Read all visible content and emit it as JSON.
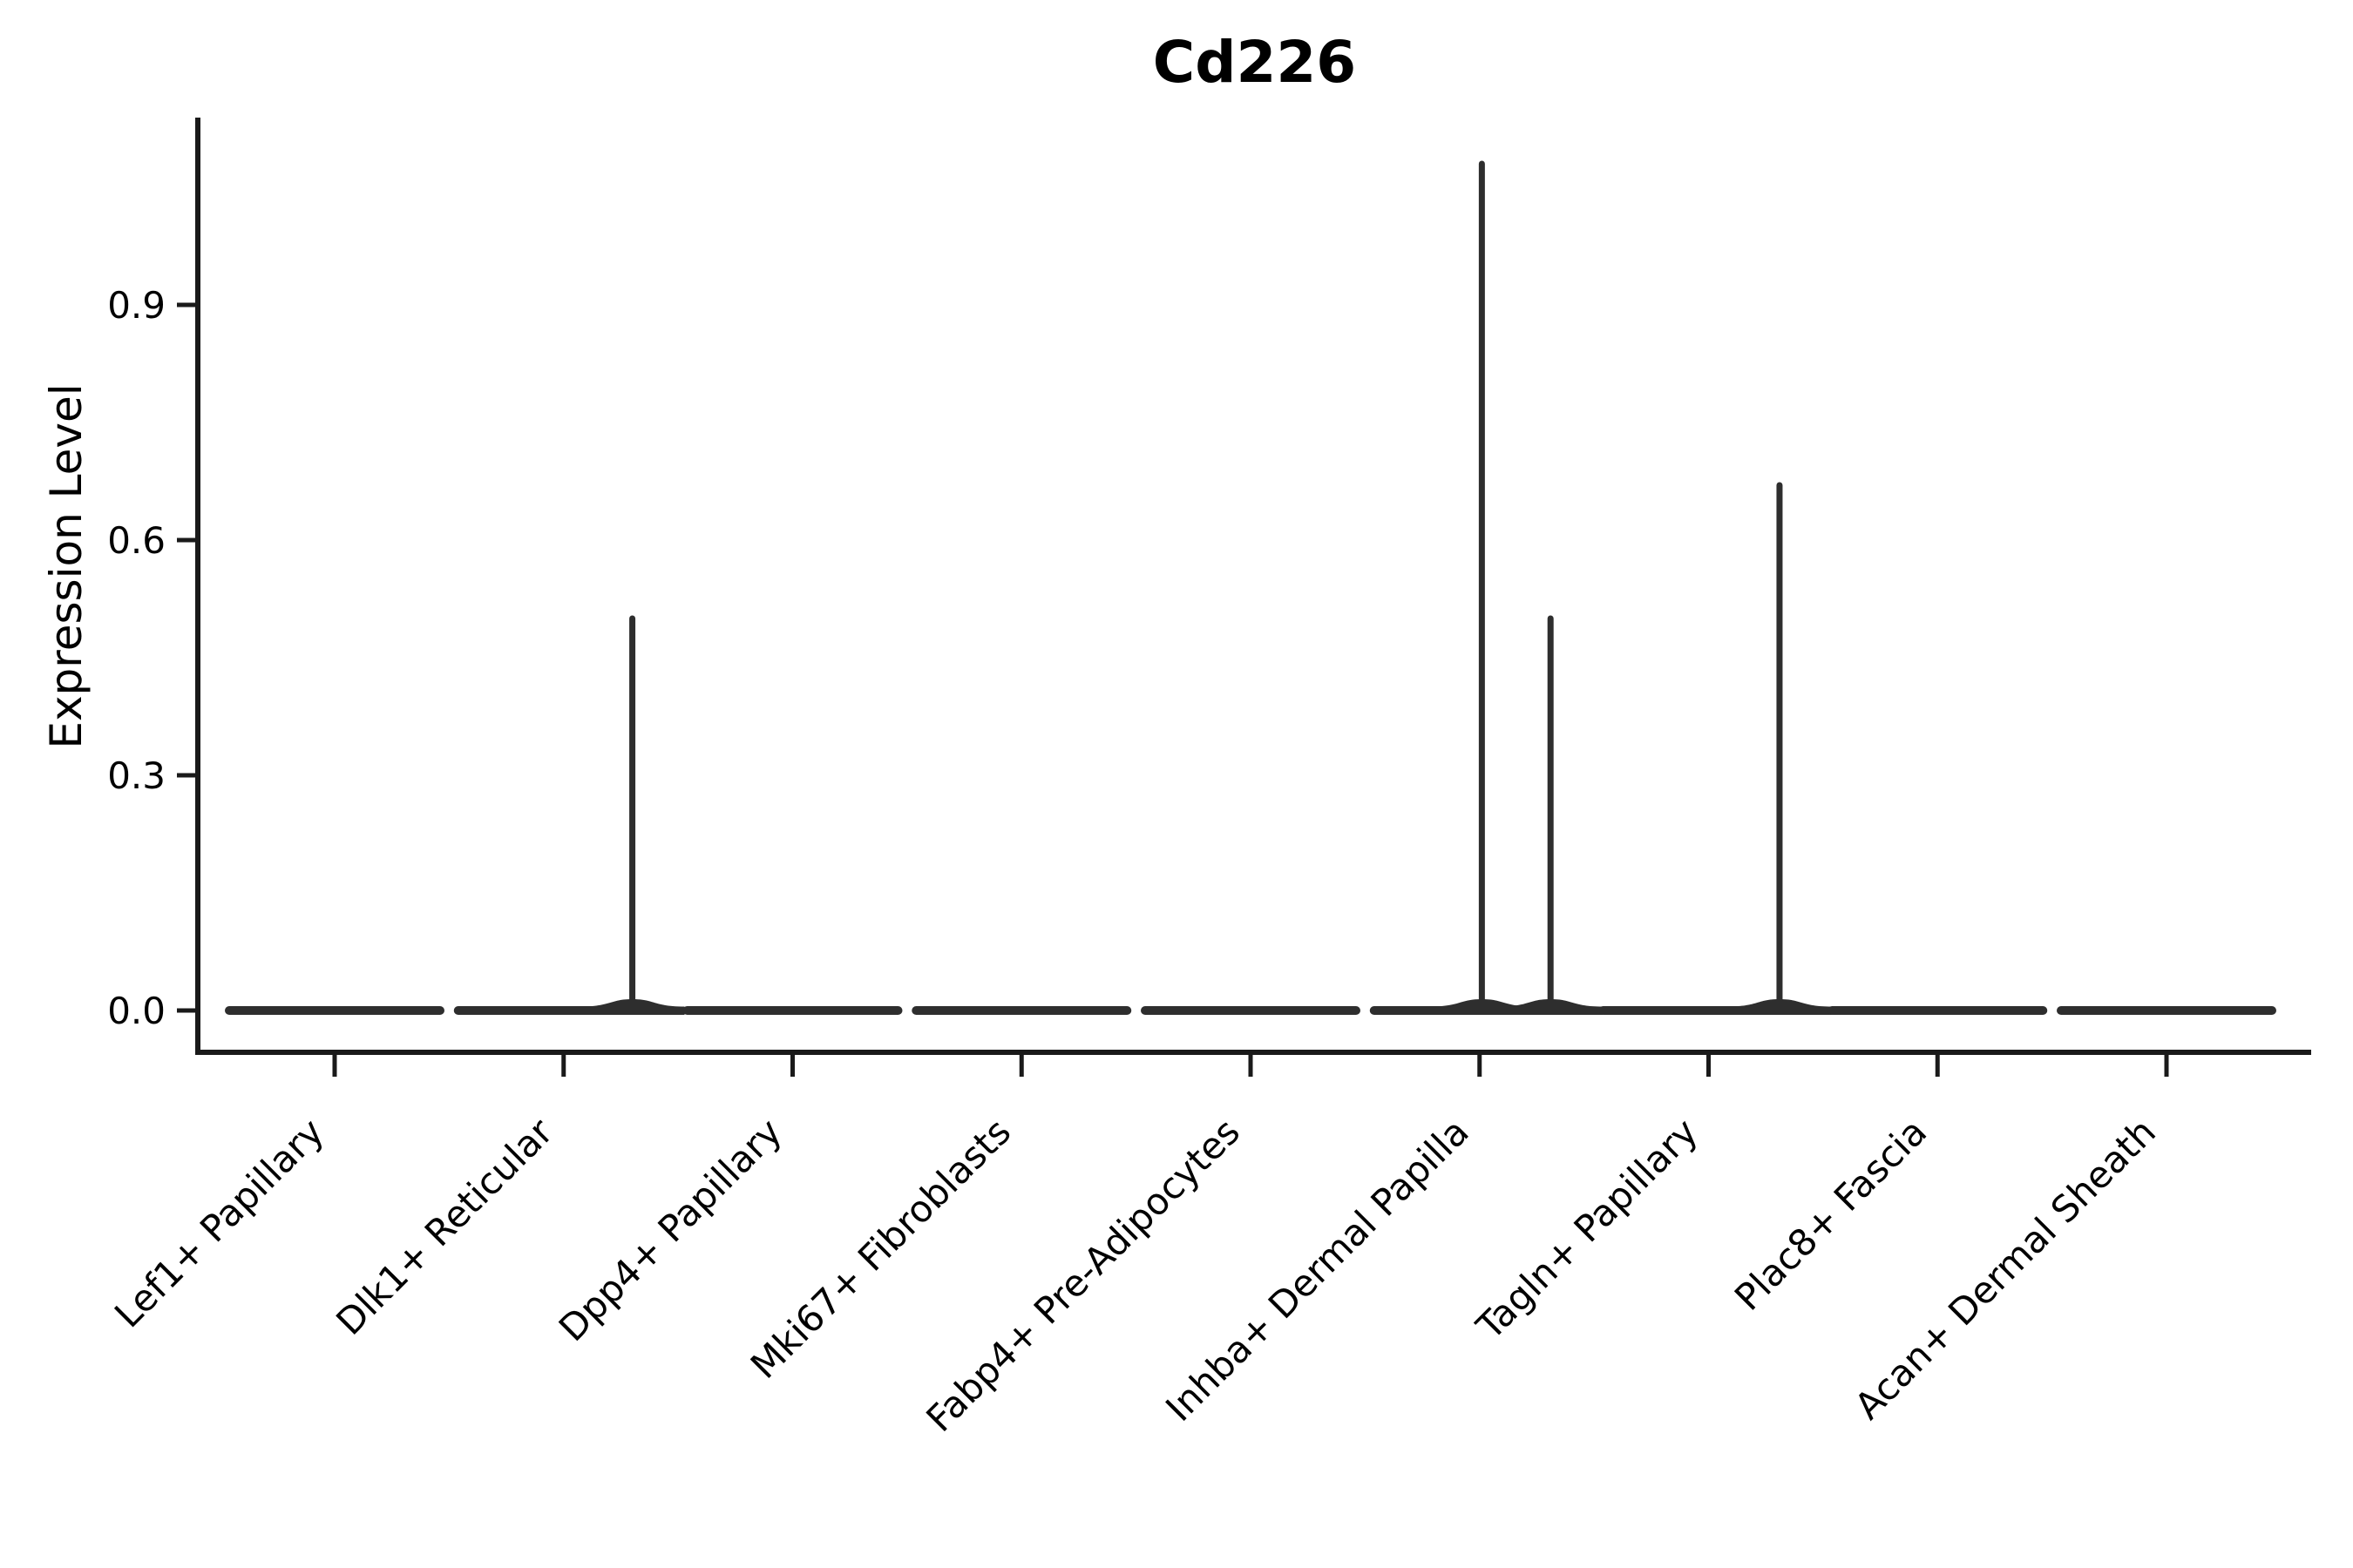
{
  "chart_data": {
    "type": "violin",
    "title": "Cd226",
    "ylabel": "Expression Level",
    "xlabel": "",
    "grid": false,
    "legend": false,
    "yticks": [
      "0.0",
      "0.3",
      "0.6",
      "0.9"
    ],
    "ytick_values": [
      0.0,
      0.3,
      0.6,
      0.9
    ],
    "ylim": [
      -0.053,
      1.139
    ],
    "categories": [
      "Lef1+ Papillary",
      "Dlk1+ Reticular",
      "Dpp4+ Papillary",
      "Mki67+ Fibroblasts",
      "Fabp4+ Pre-Adipocytes",
      "Inhba+ Dermal Papilla",
      "Tagln+ Papillary",
      "Plac8+ Fascia",
      "Acan+ Dermal Sheath"
    ],
    "violins": [
      {
        "category": "Lef1+ Papillary",
        "body": "flat-at-zero",
        "max_expression": 0,
        "spikes": []
      },
      {
        "category": "Dlk1+ Reticular",
        "body": "flat-at-zero",
        "max_expression": 0.5,
        "spikes": [
          {
            "offset_units": 0.3,
            "value": 0.5
          }
        ]
      },
      {
        "category": "Dpp4+ Papillary",
        "body": "flat-at-zero",
        "max_expression": 0,
        "spikes": []
      },
      {
        "category": "Mki67+ Fibroblasts",
        "body": "flat-at-zero",
        "max_expression": 0,
        "spikes": []
      },
      {
        "category": "Fabp4+ Pre-Adipocytes",
        "body": "flat-at-zero",
        "max_expression": 0,
        "spikes": []
      },
      {
        "category": "Inhba+ Dermal Papilla",
        "body": "flat-at-zero",
        "max_expression": 1.08,
        "spikes": [
          {
            "offset_units": 0.01,
            "value": 1.08
          },
          {
            "offset_units": 0.31,
            "value": 0.5
          }
        ]
      },
      {
        "category": "Tagln+ Papillary",
        "body": "flat-at-zero",
        "max_expression": 0.67,
        "spikes": [
          {
            "offset_units": 0.31,
            "value": 0.67
          }
        ]
      },
      {
        "category": "Plac8+ Fascia",
        "body": "flat-at-zero",
        "max_expression": 0,
        "spikes": []
      },
      {
        "category": "Acan+ Dermal Sheath",
        "body": "flat-at-zero",
        "max_expression": 0,
        "spikes": []
      }
    ],
    "colors": {
      "background": "#ffffff",
      "axis": "#1a1a1a",
      "violin": "#2e2e2e",
      "text": "#000000"
    }
  }
}
